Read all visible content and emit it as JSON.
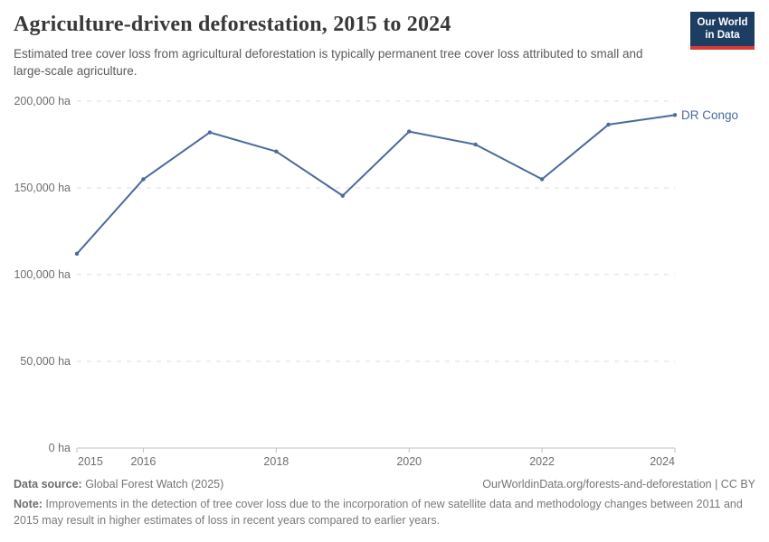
{
  "header": {
    "title": "Agriculture-driven deforestation, 2015 to 2024",
    "subtitle": "Estimated tree cover loss from agricultural deforestation is typically permanent tree cover loss attributed to small and large-scale agriculture.",
    "logo": {
      "line1": "Our World",
      "line2": "in Data"
    }
  },
  "chart_data": {
    "type": "line",
    "title": "Agriculture-driven deforestation, 2015 to 2024",
    "unit": "ha",
    "x": [
      2015,
      2016,
      2017,
      2018,
      2019,
      2020,
      2021,
      2022,
      2023,
      2024
    ],
    "series": [
      {
        "name": "DR Congo",
        "color": "#4C6A9C",
        "values": [
          112000,
          155000,
          182000,
          171000,
          145500,
          182500,
          175000,
          155000,
          186500,
          192000
        ]
      }
    ],
    "xlabel": "",
    "ylabel": "",
    "ylim": [
      0,
      200000
    ],
    "yticks": [
      0,
      50000,
      100000,
      150000,
      200000
    ],
    "xticks": [
      2015,
      2016,
      2018,
      2020,
      2022,
      2024
    ],
    "grid": "horizontal-dashed",
    "legend_position": "end-of-line"
  },
  "footer": {
    "datasource_label": "Data source:",
    "datasource_value": " Global Forest Watch (2025)",
    "attribution": "OurWorldinData.org/forests-and-deforestation | CC BY",
    "note_label": "Note:",
    "note_text": " Improvements in the detection of tree cover loss due to the incorporation of new satellite data and methodology changes between 2011 and 2015 may result in higher estimates of loss in recent years compared to earlier years."
  },
  "colors": {
    "series": "#4C6A9C",
    "grid": "#dcdcdc",
    "axis": "#c0c0c0",
    "tick_label": "#6e6e6e",
    "logo_bg": "#1d3d63",
    "logo_bar": "#d93a34",
    "title": "#383838",
    "subtitle": "#5b5b5b",
    "footer": "#757575"
  }
}
